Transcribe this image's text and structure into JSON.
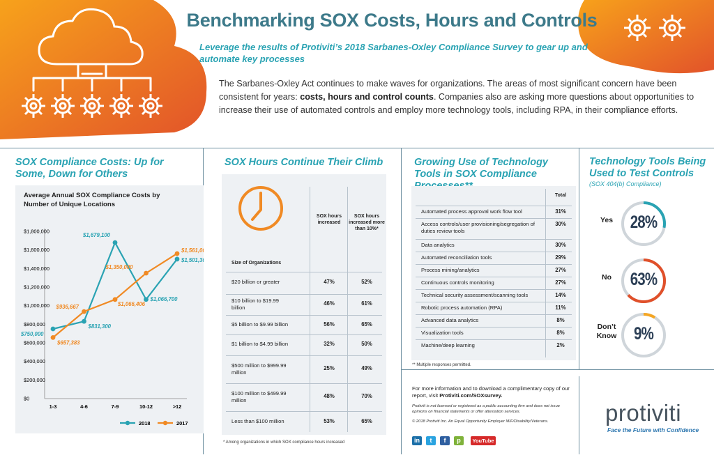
{
  "header": {
    "title": "Benchmarking SOX Costs, Hours and Controls",
    "subtitle": "Leverage the results of Protiviti’s 2018 Sarbanes-Oxley Compliance Survey to gear up and automate key processes",
    "intro_1": "The Sarbanes-Oxley Act continues to make waves for organizations. The areas of most significant concern have been consistent for years: ",
    "intro_bold": "costs, hours and control counts",
    "intro_2": ". Companies also are asking more questions about opportunities to increase their use of automated controls and employ more technology tools, including RPA, in their compliance efforts."
  },
  "costs_section": {
    "title": "SOX Compliance Costs: Up for Some, Down for Others",
    "chart_title": "Average Annual SOX Compliance Costs by Number of Unique Locations"
  },
  "chart_data": {
    "type": "line",
    "title": "Average Annual SOX Compliance Costs by Number of Unique Locations",
    "categories": [
      "1-3",
      "4-6",
      "7-9",
      "10-12",
      ">12"
    ],
    "series": [
      {
        "name": "2018",
        "color": "#2aa3b3",
        "values": [
          750000,
          831300,
          1679100,
          1066700,
          1501300
        ],
        "labels": [
          "$750,000",
          "$831,300",
          "$1,679,100",
          "$1,066,700",
          "$1,501,300"
        ]
      },
      {
        "name": "2017",
        "color": "#f08a24",
        "values": [
          657383,
          936667,
          1066406,
          1350000,
          1561000
        ],
        "labels": [
          "$657,383",
          "$936,667",
          "$1,066,406",
          "$1,350,000",
          "$1,561,000"
        ]
      }
    ],
    "ylim": [
      0,
      1800000
    ],
    "yticks": [
      "$0",
      "$200,000",
      "$400,000",
      "$600,000",
      "$800,000",
      "$1,000,000",
      "$1,200,000",
      "$1,400,000",
      "$1,600,000",
      "$1,800,000"
    ],
    "legend": "bottom",
    "grid": false
  },
  "hours_section": {
    "title": "SOX Hours Continue Their Climb",
    "col1": "SOX hours increased",
    "col2": "SOX hours increased more than 10%*",
    "row_header": "Size of Organizations",
    "rows": [
      {
        "label": "$20 billion or greater",
        "v1": "47%",
        "v2": "52%"
      },
      {
        "label": "$10 billion to $19.99 billion",
        "v1": "46%",
        "v2": "61%"
      },
      {
        "label": "$5 billion to $9.99 billion",
        "v1": "56%",
        "v2": "65%"
      },
      {
        "label": "$1 billion to $4.99 billion",
        "v1": "32%",
        "v2": "50%"
      },
      {
        "label": "$500 million to $999.99 million",
        "v1": "25%",
        "v2": "49%"
      },
      {
        "label": "$100 million to $499.99 million",
        "v1": "48%",
        "v2": "70%"
      },
      {
        "label": "Less than $100 million",
        "v1": "53%",
        "v2": "65%"
      }
    ],
    "footnote": "* Among organizations in which SOX compliance hours increased"
  },
  "tools_section": {
    "title": "Growing Use of Technology Tools in SOX Compliance Processes**",
    "col": "Total",
    "rows": [
      {
        "label": "Automated process approval work flow tool",
        "v": "31%"
      },
      {
        "label": "Access controls/user provisioning/segregation of duties review tools",
        "v": "30%"
      },
      {
        "label": "Data analytics",
        "v": "30%"
      },
      {
        "label": "Automated reconciliation tools",
        "v": "29%"
      },
      {
        "label": "Process mining/analytics",
        "v": "27%"
      },
      {
        "label": "Continuous controls monitoring",
        "v": "27%"
      },
      {
        "label": "Technical security assessment/scanning tools",
        "v": "14%"
      },
      {
        "label": "Robotic process automation (RPA)",
        "v": "11%"
      },
      {
        "label": "Advanced data analytics",
        "v": "8%"
      },
      {
        "label": "Visualization tools",
        "v": "8%"
      },
      {
        "label": "Machine/deep learning",
        "v": "2%"
      }
    ],
    "footnote": "** Multiple responses permitted."
  },
  "testing_section": {
    "title": "Technology Tools Being Used to Test Controls",
    "subtitle": "(SOX 404(b) Compliance)",
    "items": [
      {
        "label": "Yes",
        "value": "28%",
        "fraction": 0.28,
        "color": "#2aa3b3"
      },
      {
        "label": "No",
        "value": "63%",
        "fraction": 0.63,
        "color": "#e0502a"
      },
      {
        "label": "Don’t Know",
        "value": "9%",
        "fraction": 0.09,
        "color": "#f5a623"
      }
    ]
  },
  "footer": {
    "info_1": "For more information and to download a complimentary copy of our report, visit ",
    "info_link": "Protiviti.com/SOXsurvey.",
    "disclaimer": "Protiviti is not licensed or registered as a public accounting firm and does not issue opinions on financial statements or offer attestation services.",
    "copyright": "© 2018 Protiviti Inc. An Equal Opportunity Employer M/F/Disability/Veterans.",
    "social": [
      "in",
      "t",
      "f",
      "p",
      "YouTube"
    ],
    "brand": "protiviti",
    "tagline": "Face the Future with Confidence"
  },
  "colors": {
    "teal": "#2aa3b3",
    "orange": "#f08a24",
    "navy": "#2b3e55",
    "red": "#e0502a"
  },
  "icons": [
    "cloud-gears-icon",
    "gears-icon",
    "clock-icon",
    "linkedin-icon",
    "twitter-icon",
    "facebook-icon",
    "pinterest-icon",
    "youtube-icon"
  ]
}
